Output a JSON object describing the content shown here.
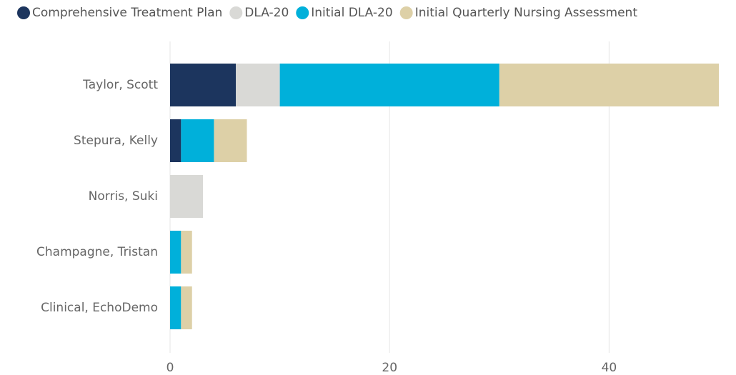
{
  "chart_data": {
    "type": "stacked-barh",
    "categories": [
      "Taylor, Scott",
      "Stepura, Kelly",
      "Norris, Suki",
      "Champagne, Tristan",
      "Clinical, EchoDemo"
    ],
    "series": [
      {
        "name": "Comprehensive Treatment Plan",
        "color": "#1c355e",
        "values": [
          6,
          1,
          0,
          0,
          0
        ]
      },
      {
        "name": "DLA-20",
        "color": "#d9d9d6",
        "values": [
          4,
          0,
          3,
          0,
          0
        ]
      },
      {
        "name": "Initial DLA-20",
        "color": "#00b0da",
        "values": [
          20,
          3,
          0,
          1,
          1
        ]
      },
      {
        "name": "Initial Quarterly Nursing Assessment",
        "color": "#ddd0a7",
        "values": [
          20,
          3,
          0,
          1,
          1
        ]
      }
    ],
    "xlim": [
      0,
      50
    ],
    "xticks": [
      0,
      20,
      40
    ],
    "grid": true,
    "legend": "top"
  }
}
